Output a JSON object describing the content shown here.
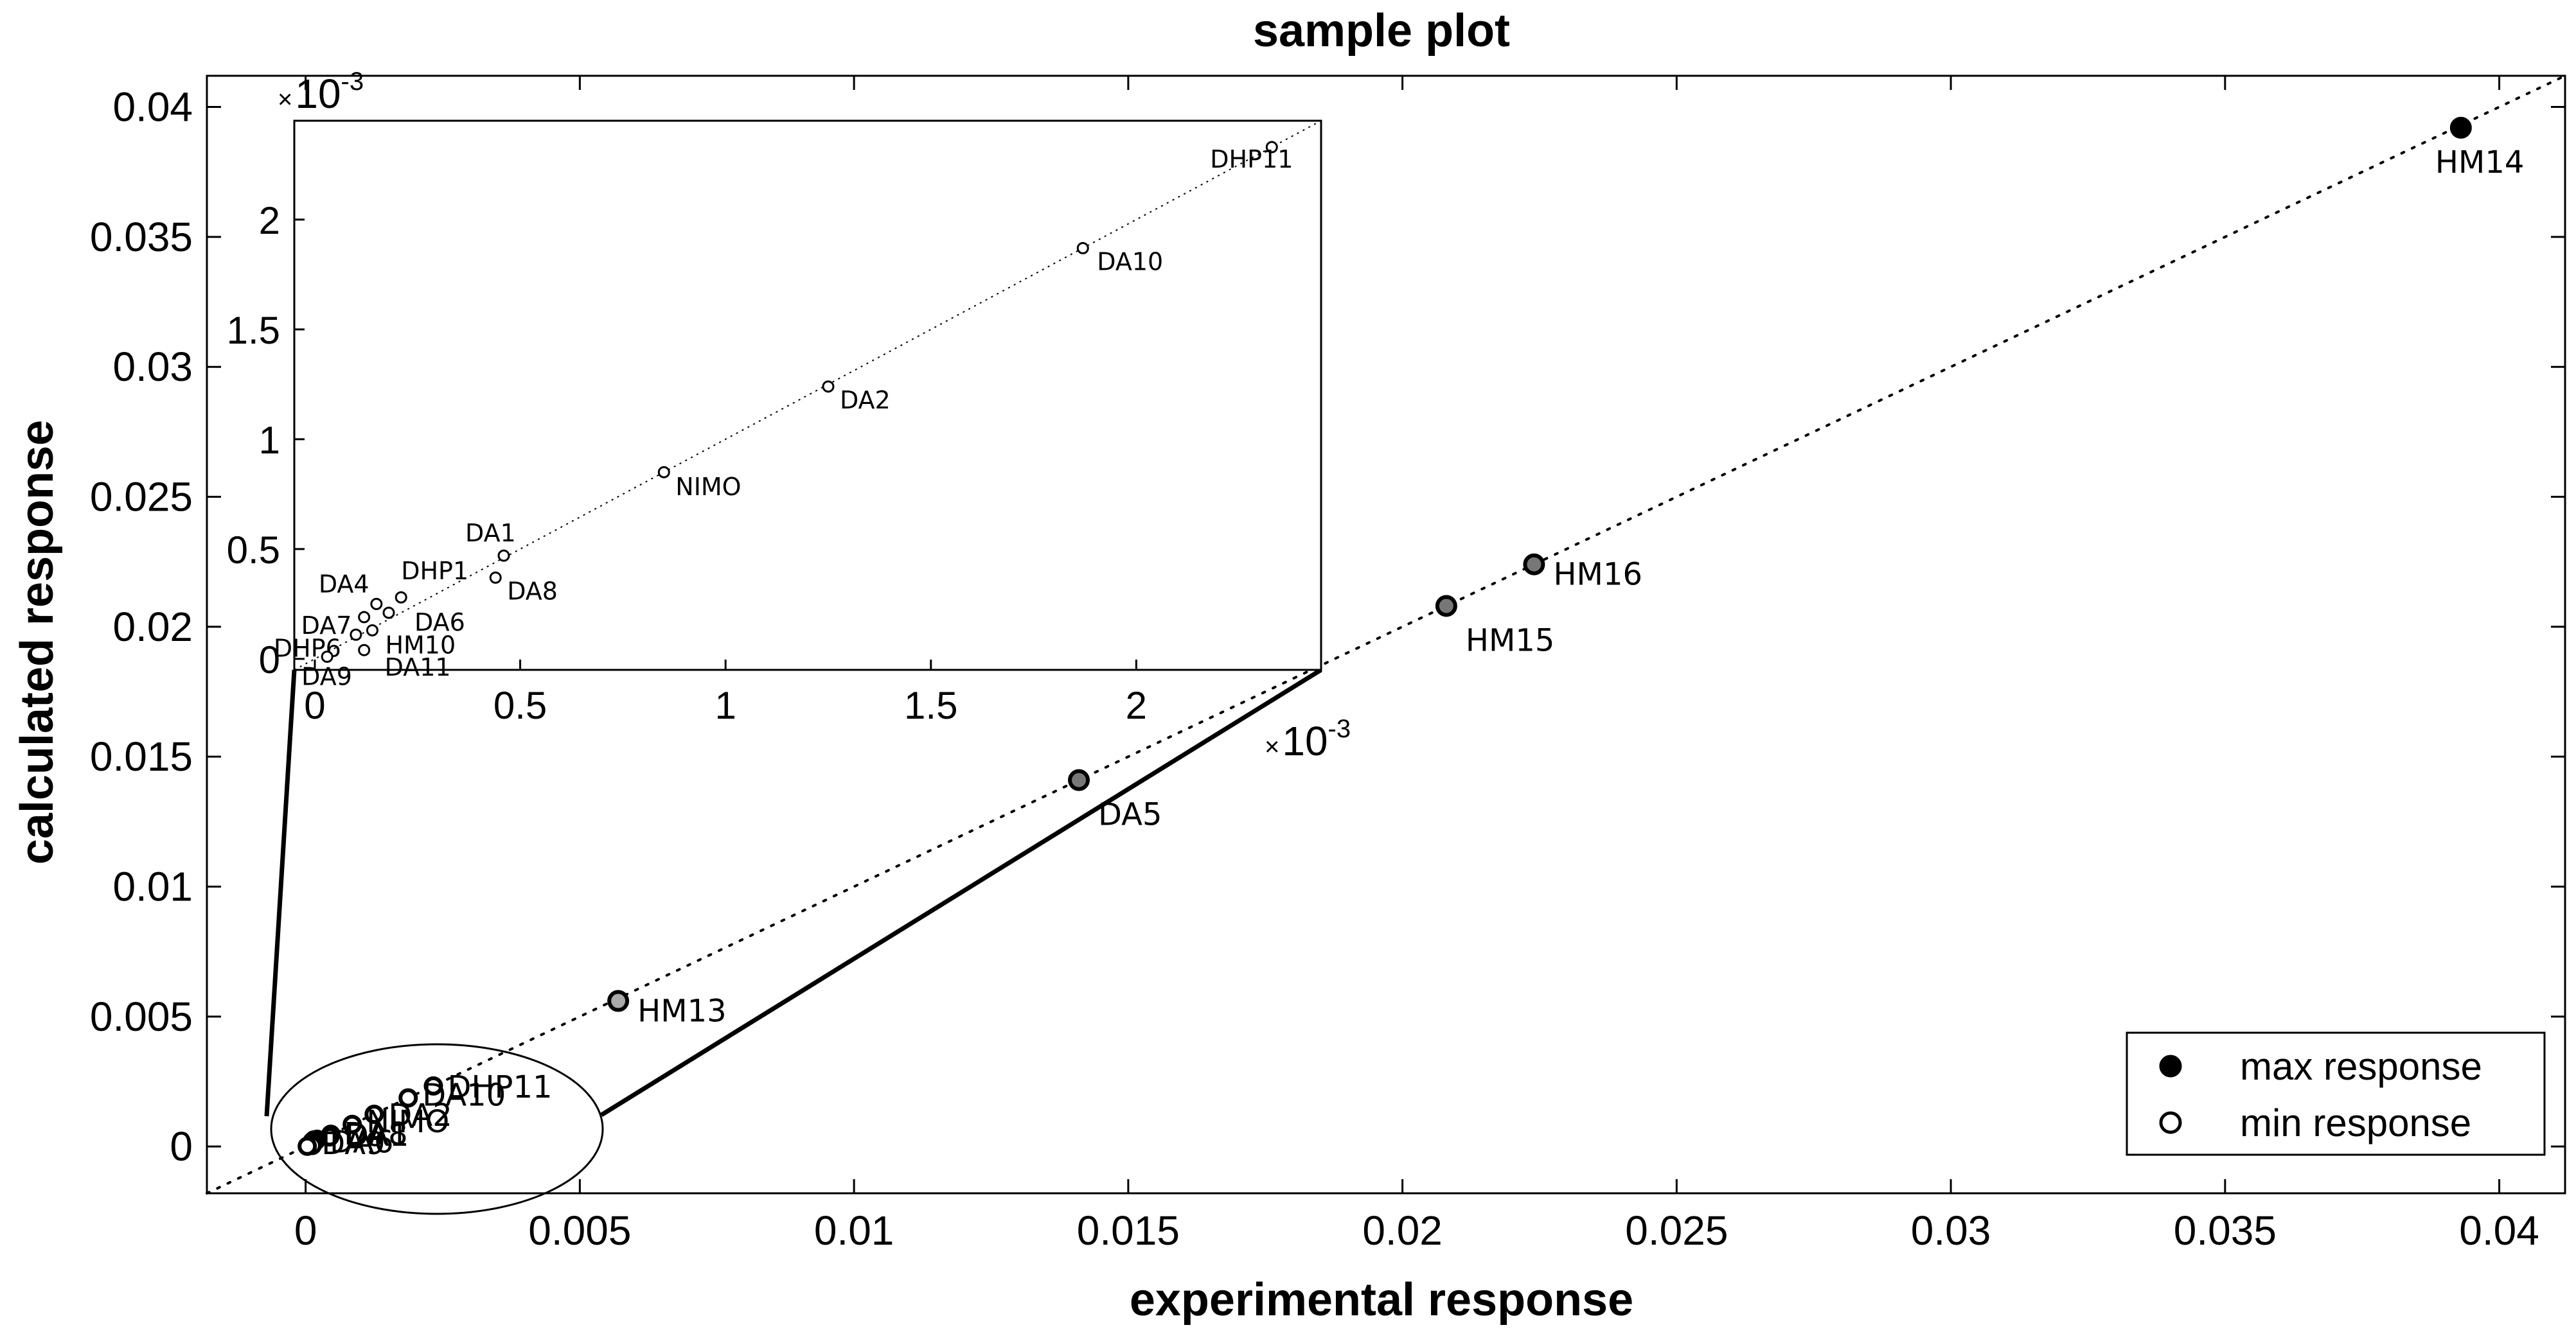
{
  "chart_data": {
    "type": "scatter",
    "title": "sample plot",
    "xlabel": "experimental response",
    "ylabel": "calculated response",
    "xlim": [
      -0.0018,
      0.0412
    ],
    "ylim": [
      -0.0018,
      0.0412
    ],
    "xticks": [
      "0",
      "0.005",
      "0.01",
      "0.015",
      "0.02",
      "0.025",
      "0.03",
      "0.035",
      "0.04"
    ],
    "yticks": [
      "0",
      "0.005",
      "0.01",
      "0.015",
      "0.02",
      "0.025",
      "0.03",
      "0.035",
      "0.04"
    ],
    "reference_line": "y = x (dotted)",
    "legend": {
      "placement": "bottom-right",
      "entries": [
        {
          "label": "max response",
          "marker": "filled-black-circle"
        },
        {
          "label": "min response",
          "marker": "open-circle"
        }
      ]
    },
    "series": [
      {
        "name": "max response",
        "points": [
          {
            "label": "HM14",
            "x": 0.0393,
            "y": 0.0392,
            "fill": "#000000"
          },
          {
            "label": "HM16",
            "x": 0.0224,
            "y": 0.0224,
            "fill": "#777777"
          },
          {
            "label": "HM15",
            "x": 0.0208,
            "y": 0.0208,
            "fill": "#777777"
          },
          {
            "label": "DA5",
            "x": 0.0141,
            "y": 0.0141,
            "fill": "#777777"
          },
          {
            "label": "HM13",
            "x": 0.0057,
            "y": 0.0056,
            "fill": "#aaaaaa"
          }
        ]
      },
      {
        "name": "min response",
        "points": [
          {
            "label": "DHP11",
            "x": 0.00233,
            "y": 0.00233
          },
          {
            "label": "DA10",
            "x": 0.00187,
            "y": 0.00187
          },
          {
            "label": "DA2",
            "x": 0.00125,
            "y": 0.00124
          },
          {
            "label": "NIMO",
            "x": 0.00085,
            "y": 0.00085
          },
          {
            "label": "DA1",
            "x": 0.00046,
            "y": 0.00047
          },
          {
            "label": "DA8",
            "x": 0.00044,
            "y": 0.00037
          },
          {
            "label": "DHP1",
            "x": 0.00021,
            "y": 0.00028
          },
          {
            "label": "DA4",
            "x": 0.00015,
            "y": 0.00025
          },
          {
            "label": "DA6",
            "x": 0.00018,
            "y": 0.00021
          },
          {
            "label": "DA7",
            "x": 0.00012,
            "y": 0.00019
          },
          {
            "label": "HM10",
            "x": 0.00014,
            "y": 0.00013
          },
          {
            "label": "DHP6",
            "x": 0.0001,
            "y": 0.00011
          },
          {
            "label": "DA11",
            "x": 0.00012,
            "y": 4e-05
          },
          {
            "label": "DA9",
            "x": 3e-05,
            "y": 1e-05
          }
        ]
      }
    ],
    "main_min_labels": [
      "DHP11",
      "DA10",
      "DA2",
      "NIMO",
      "DA1",
      "DA8",
      "DA6",
      "DA9"
    ],
    "inset": {
      "xlim": [
        -5e-05,
        0.00245
      ],
      "ylim": [
        -5e-05,
        0.00245
      ],
      "xticks": [
        "0",
        "0.5",
        "1",
        "1.5",
        "2"
      ],
      "yticks": [
        "0",
        "0.5",
        "1",
        "1.5",
        "2"
      ],
      "multiplier_prefix": "×10",
      "multiplier_exp": "-3"
    }
  }
}
